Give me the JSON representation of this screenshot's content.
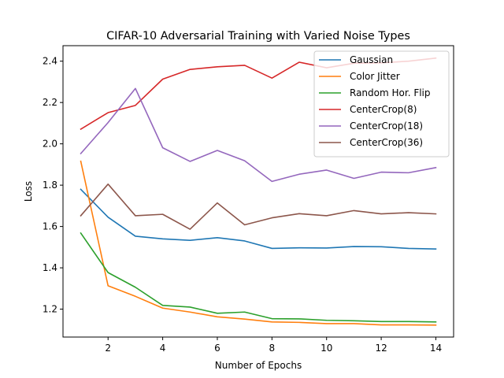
{
  "chart_data": {
    "type": "line",
    "title": "CIFAR-10 Adversarial Training with Varied Noise Types",
    "xlabel": "Number of Epochs",
    "ylabel": "Loss",
    "xlim": [
      0.35,
      14.65
    ],
    "ylim": [
      1.065,
      2.475
    ],
    "xticks": [
      2,
      4,
      6,
      8,
      10,
      12,
      14
    ],
    "yticks": [
      1.2,
      1.4,
      1.6,
      1.8,
      2.0,
      2.2,
      2.4
    ],
    "ytick_labels": [
      "1.2",
      "1.4",
      "1.6",
      "1.8",
      "2.0",
      "2.2",
      "2.4"
    ],
    "grid": false,
    "legend_position": "upper right",
    "x": [
      1,
      2,
      3,
      4,
      5,
      6,
      7,
      8,
      9,
      10,
      11,
      12,
      13,
      14
    ],
    "series": [
      {
        "name": "Gaussian",
        "color": "#1f77b4",
        "values": [
          1.78,
          1.645,
          1.553,
          1.54,
          1.533,
          1.546,
          1.53,
          1.494,
          1.497,
          1.496,
          1.503,
          1.502,
          1.494,
          1.491
        ]
      },
      {
        "name": "Color Jitter",
        "color": "#ff7f0e",
        "values": [
          1.916,
          1.313,
          1.262,
          1.205,
          1.186,
          1.163,
          1.152,
          1.138,
          1.136,
          1.13,
          1.13,
          1.124,
          1.124,
          1.123
        ]
      },
      {
        "name": "Random Hor. Flip",
        "color": "#2ca02c",
        "values": [
          1.568,
          1.377,
          1.306,
          1.218,
          1.21,
          1.18,
          1.186,
          1.154,
          1.153,
          1.146,
          1.144,
          1.14,
          1.14,
          1.138
        ]
      },
      {
        "name": "CenterCrop(8)",
        "color": "#d62728",
        "values": [
          2.071,
          2.151,
          2.186,
          2.313,
          2.36,
          2.373,
          2.38,
          2.318,
          2.395,
          2.368,
          2.39,
          2.392,
          2.4,
          2.415
        ]
      },
      {
        "name": "CenterCrop(18)",
        "color": "#9467bd",
        "values": [
          1.953,
          2.103,
          2.268,
          1.981,
          1.915,
          1.968,
          1.918,
          1.818,
          1.853,
          1.873,
          1.833,
          1.863,
          1.86,
          1.885
        ]
      },
      {
        "name": "CenterCrop(36)",
        "color": "#8c564b",
        "values": [
          1.652,
          1.805,
          1.652,
          1.659,
          1.587,
          1.714,
          1.608,
          1.642,
          1.662,
          1.652,
          1.677,
          1.661,
          1.667,
          1.661
        ]
      }
    ]
  }
}
